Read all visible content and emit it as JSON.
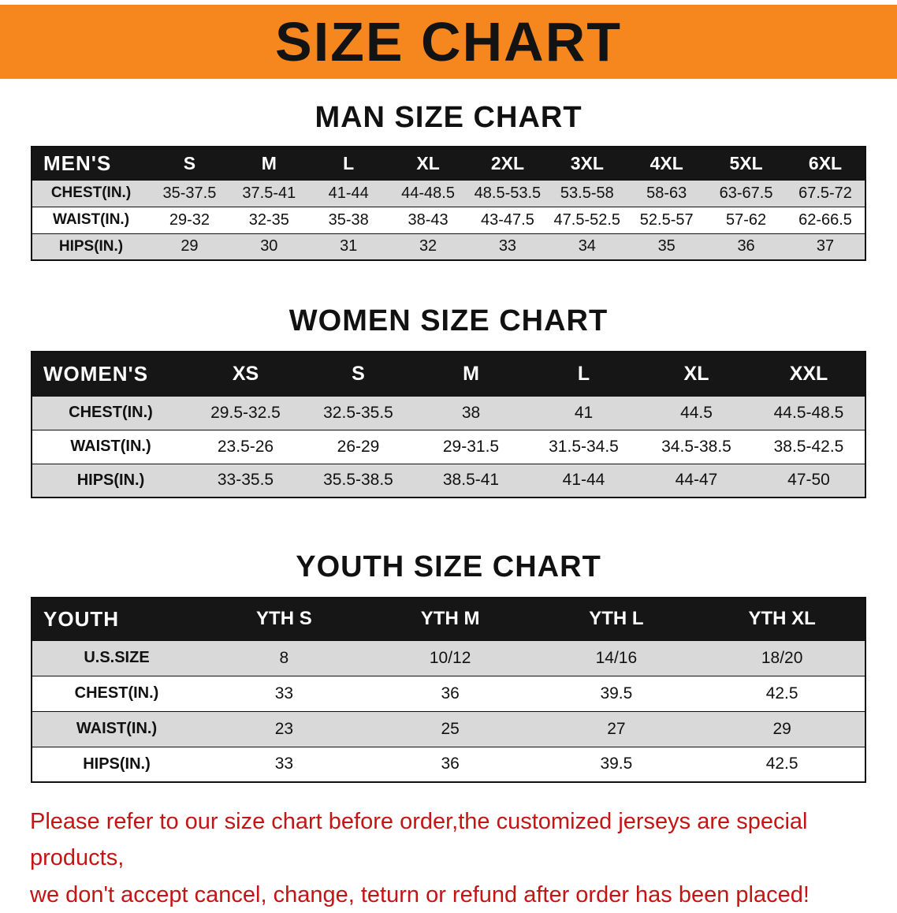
{
  "banner": {
    "title": "SIZE CHART"
  },
  "colors": {
    "banner_bg": "#f6871f",
    "banner_text": "#131313",
    "table_header_bg": "#161616",
    "table_header_text": "#ffffff",
    "row_alt_bg": "#d9d9d9",
    "notice_text": "#c41414"
  },
  "sections": [
    {
      "heading": "MAN SIZE CHART",
      "table": {
        "label": "MEN'S",
        "columns": [
          "S",
          "M",
          "L",
          "XL",
          "2XL",
          "3XL",
          "4XL",
          "5XL",
          "6XL"
        ],
        "rows": [
          {
            "label": "CHEST(IN.)",
            "values": [
              "35-37.5",
              "37.5-41",
              "41-44",
              "44-48.5",
              "48.5-53.5",
              "53.5-58",
              "58-63",
              "63-67.5",
              "67.5-72"
            ]
          },
          {
            "label": "WAIST(IN.)",
            "values": [
              "29-32",
              "32-35",
              "35-38",
              "38-43",
              "43-47.5",
              "47.5-52.5",
              "52.5-57",
              "57-62",
              "62-66.5"
            ]
          },
          {
            "label": "HIPS(IN.)",
            "values": [
              "29",
              "30",
              "31",
              "32",
              "33",
              "34",
              "35",
              "36",
              "37"
            ]
          }
        ]
      }
    },
    {
      "heading": "WOMEN SIZE CHART",
      "table": {
        "label": "WOMEN'S",
        "columns": [
          "XS",
          "S",
          "M",
          "L",
          "XL",
          "XXL"
        ],
        "rows": [
          {
            "label": "CHEST(IN.)",
            "values": [
              "29.5-32.5",
              "32.5-35.5",
              "38",
              "41",
              "44.5",
              "44.5-48.5"
            ]
          },
          {
            "label": "WAIST(IN.)",
            "values": [
              "23.5-26",
              "26-29",
              "29-31.5",
              "31.5-34.5",
              "34.5-38.5",
              "38.5-42.5"
            ]
          },
          {
            "label": "HIPS(IN.)",
            "values": [
              "33-35.5",
              "35.5-38.5",
              "38.5-41",
              "41-44",
              "44-47",
              "47-50"
            ]
          }
        ]
      }
    },
    {
      "heading": "YOUTH SIZE CHART",
      "table": {
        "label": "YOUTH",
        "columns": [
          "YTH S",
          "YTH M",
          "YTH L",
          "YTH XL"
        ],
        "rows": [
          {
            "label": "U.S.SIZE",
            "values": [
              "8",
              "10/12",
              "14/16",
              "18/20"
            ]
          },
          {
            "label": "CHEST(IN.)",
            "values": [
              "33",
              "36",
              "39.5",
              "42.5"
            ]
          },
          {
            "label": "WAIST(IN.)",
            "values": [
              "23",
              "25",
              "27",
              "29"
            ]
          },
          {
            "label": "HIPS(IN.)",
            "values": [
              "33",
              "36",
              "39.5",
              "42.5"
            ]
          }
        ]
      }
    }
  ],
  "notice": {
    "line1": "Please refer to our size chart before order,the customized jerseys are special products,",
    "line2": "we don't accept cancel, change, teturn or refund after order has been placed!"
  }
}
